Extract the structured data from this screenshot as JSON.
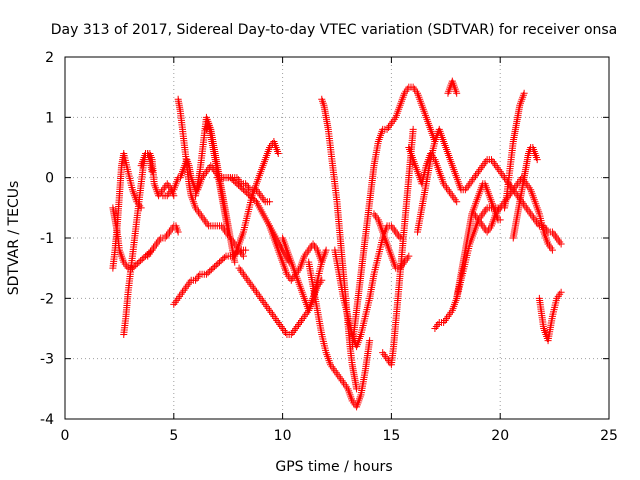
{
  "chart_data": {
    "type": "scatter",
    "title": "Day 313 of 2017, Sidereal Day-to-day VTEC variation (SDTVAR) for receiver onsa",
    "xlabel": "GPS time / hours",
    "ylabel": "SDTVAR / TECUs",
    "xlim": [
      0,
      25
    ],
    "ylim": [
      -4,
      2
    ],
    "xticks": [
      "0",
      "5",
      "10",
      "15",
      "20",
      "25"
    ],
    "yticks": [
      "-4",
      "-3",
      "-2",
      "-1",
      "0",
      "1",
      "2"
    ],
    "grid": true,
    "marker": "+",
    "color": "#ff0000",
    "series": [
      {
        "x": [
          2.2,
          2.3,
          2.4,
          2.5,
          2.7,
          2.9,
          3.1,
          3.4,
          3.7,
          4.0
        ],
        "y": [
          -0.5,
          -0.7,
          -0.9,
          -1.2,
          -1.4,
          -1.5,
          -1.5,
          -1.4,
          -1.3,
          -1.2
        ]
      },
      {
        "x": [
          2.2,
          2.3,
          2.4,
          2.5,
          2.6,
          2.7,
          2.9,
          3.1,
          3.3,
          3.5
        ],
        "y": [
          -1.5,
          -1.2,
          -0.8,
          -0.3,
          0.2,
          0.4,
          0.1,
          -0.2,
          -0.4,
          -0.5
        ]
      },
      {
        "x": [
          2.7,
          2.8,
          2.9,
          3.0,
          3.1,
          3.2,
          3.3,
          3.4,
          3.5,
          3.6,
          3.7,
          3.8,
          3.9,
          4.0
        ],
        "y": [
          -2.6,
          -2.3,
          -1.9,
          -1.6,
          -1.3,
          -1.0,
          -0.7,
          -0.4,
          -0.1,
          0.2,
          0.4,
          0.4,
          0.3,
          0.1
        ]
      },
      {
        "x": [
          3.5,
          3.7,
          3.9,
          4.0,
          4.1,
          4.3,
          4.5,
          4.7,
          4.9,
          5.0
        ],
        "y": [
          0.2,
          0.4,
          0.4,
          0.3,
          -0.1,
          -0.3,
          -0.2,
          -0.1,
          -0.2,
          -0.3
        ]
      },
      {
        "x": [
          3.8,
          4.0,
          4.2,
          4.4,
          4.6,
          4.8,
          5.0,
          5.1,
          5.2
        ],
        "y": [
          -1.3,
          -1.2,
          -1.1,
          -1.0,
          -1.0,
          -0.9,
          -0.8,
          -0.8,
          -0.9
        ]
      },
      {
        "x": [
          4.5,
          4.7,
          4.9,
          5.0,
          5.1,
          5.2,
          5.3,
          5.4,
          5.5,
          5.6,
          5.7,
          5.8,
          5.9,
          6.0,
          6.1,
          6.2,
          6.3,
          6.5,
          6.7,
          6.9,
          7.1,
          7.3,
          7.5,
          7.7,
          7.9,
          8.1,
          8.3,
          8.5,
          8.8,
          9.0,
          9.2,
          9.4
        ],
        "y": [
          -0.3,
          -0.3,
          -0.2,
          -0.2,
          -0.1,
          0.0,
          0.0,
          0.1,
          0.2,
          0.3,
          0.2,
          0.0,
          -0.1,
          -0.2,
          -0.2,
          -0.1,
          0.0,
          0.1,
          0.2,
          0.1,
          0.0,
          0.0,
          0.0,
          0.0,
          0.0,
          -0.1,
          -0.1,
          -0.2,
          -0.2,
          -0.3,
          -0.4,
          -0.4
        ]
      },
      {
        "x": [
          5.0,
          5.2,
          5.4,
          5.6,
          5.8,
          6.0,
          6.2,
          6.5,
          6.8,
          7.1,
          7.4,
          7.7,
          8.0,
          8.3
        ],
        "y": [
          -2.1,
          -2.0,
          -1.9,
          -1.8,
          -1.7,
          -1.7,
          -1.6,
          -1.6,
          -1.5,
          -1.4,
          -1.3,
          -1.3,
          -1.2,
          -1.2
        ]
      },
      {
        "x": [
          5.2,
          5.3,
          5.4,
          5.5,
          5.6,
          5.7,
          5.8,
          5.9,
          6.0,
          6.2,
          6.4,
          6.6,
          6.8,
          7.0,
          7.2,
          7.4,
          7.6,
          7.8,
          8.0,
          8.2
        ],
        "y": [
          1.3,
          1.1,
          0.8,
          0.5,
          0.2,
          -0.1,
          -0.3,
          -0.4,
          -0.5,
          -0.6,
          -0.7,
          -0.8,
          -0.8,
          -0.8,
          -0.8,
          -0.9,
          -1.0,
          -1.1,
          -1.2,
          -1.3
        ]
      },
      {
        "x": [
          6.0,
          6.1,
          6.2,
          6.3,
          6.4,
          6.5,
          6.6,
          6.7,
          6.8,
          6.9,
          7.0,
          7.1,
          7.2,
          7.3,
          7.4,
          7.5
        ],
        "y": [
          -0.3,
          -0.1,
          0.1,
          0.4,
          0.7,
          1.0,
          0.9,
          0.7,
          0.5,
          0.3,
          0.1,
          -0.1,
          -0.3,
          -0.5,
          -0.7,
          -0.9
        ]
      },
      {
        "x": [
          6.5,
          6.6,
          6.7,
          6.8,
          6.9,
          7.0,
          7.1,
          7.2,
          7.3,
          7.4,
          7.5,
          7.6,
          7.7,
          7.8
        ],
        "y": [
          0.8,
          0.9,
          0.8,
          0.6,
          0.4,
          0.2,
          0.0,
          -0.2,
          -0.4,
          -0.6,
          -0.8,
          -1.0,
          -1.2,
          -1.4
        ]
      },
      {
        "x": [
          7.8,
          8.0,
          8.2,
          8.4,
          8.6,
          8.8,
          9.0,
          9.2,
          9.4,
          9.6,
          9.8
        ],
        "y": [
          -1.3,
          -1.1,
          -0.9,
          -0.6,
          -0.3,
          -0.1,
          0.1,
          0.3,
          0.5,
          0.6,
          0.4
        ]
      },
      {
        "x": [
          7.0,
          7.3,
          7.6,
          7.9,
          8.2,
          8.5,
          8.8,
          9.1,
          9.4,
          9.7,
          10.0,
          10.3
        ],
        "y": [
          0.0,
          0.0,
          0.0,
          -0.1,
          -0.2,
          -0.3,
          -0.4,
          -0.6,
          -0.8,
          -1.0,
          -1.2,
          -1.4
        ]
      },
      {
        "x": [
          8.0,
          8.2,
          8.4,
          8.6,
          8.8,
          9.0,
          9.2,
          9.4,
          9.6,
          9.8,
          10.0,
          10.2,
          10.4,
          10.6,
          10.8,
          11.0,
          11.2,
          11.4,
          11.6,
          11.8
        ],
        "y": [
          -1.5,
          -1.6,
          -1.7,
          -1.8,
          -1.9,
          -2.0,
          -2.1,
          -2.2,
          -2.3,
          -2.4,
          -2.5,
          -2.6,
          -2.6,
          -2.5,
          -2.4,
          -2.3,
          -2.2,
          -2.0,
          -1.8,
          -1.7
        ]
      },
      {
        "x": [
          9.4,
          9.6,
          9.8,
          10.0,
          10.2,
          10.4,
          10.6,
          10.8,
          11.0,
          11.2,
          11.4,
          11.6,
          11.8
        ],
        "y": [
          -0.8,
          -1.0,
          -1.2,
          -1.4,
          -1.6,
          -1.7,
          -1.6,
          -1.5,
          -1.3,
          -1.2,
          -1.1,
          -1.2,
          -1.4
        ]
      },
      {
        "x": [
          10.0,
          10.2,
          10.4,
          10.6,
          10.8,
          11.0,
          11.2,
          11.4,
          11.6,
          11.8,
          12.0
        ],
        "y": [
          -1.0,
          -1.2,
          -1.4,
          -1.6,
          -1.8,
          -2.0,
          -2.2,
          -2.0,
          -1.7,
          -1.4,
          -1.2
        ]
      },
      {
        "x": [
          11.2,
          11.4,
          11.6,
          11.8,
          12.0,
          12.2,
          12.4,
          12.6,
          12.8,
          13.0,
          13.2,
          13.4,
          13.6,
          13.8,
          14.0
        ],
        "y": [
          -1.4,
          -1.8,
          -2.2,
          -2.6,
          -2.9,
          -3.1,
          -3.2,
          -3.3,
          -3.4,
          -3.5,
          -3.7,
          -3.8,
          -3.6,
          -3.2,
          -2.7
        ]
      },
      {
        "x": [
          11.8,
          11.9,
          12.0,
          12.1,
          12.2,
          12.3,
          12.4,
          12.5,
          12.6,
          12.7,
          12.8,
          12.9,
          13.0,
          13.1,
          13.2,
          13.3,
          13.4
        ],
        "y": [
          1.3,
          1.2,
          1.0,
          0.8,
          0.5,
          0.2,
          -0.1,
          -0.4,
          -0.8,
          -1.2,
          -1.6,
          -2.0,
          -2.4,
          -2.8,
          -3.1,
          -3.3,
          -3.5
        ]
      },
      {
        "x": [
          12.4,
          12.6,
          12.8,
          13.0,
          13.2,
          13.4,
          13.6,
          13.8,
          14.0,
          14.2,
          14.4,
          14.6,
          14.8,
          15.0,
          15.2,
          15.4
        ],
        "y": [
          -1.2,
          -1.6,
          -2.0,
          -2.3,
          -2.6,
          -2.8,
          -2.6,
          -2.3,
          -2.0,
          -1.6,
          -1.3,
          -1.0,
          -0.8,
          -0.8,
          -0.9,
          -1.0
        ]
      },
      {
        "x": [
          13.2,
          13.4,
          13.6,
          13.8,
          14.0,
          14.2,
          14.4,
          14.6,
          14.8,
          15.0,
          15.2,
          15.4,
          15.6,
          15.8,
          16.0,
          16.2,
          16.4,
          16.6,
          16.8,
          17.0
        ],
        "y": [
          -2.8,
          -2.2,
          -1.6,
          -1.0,
          -0.4,
          0.2,
          0.6,
          0.8,
          0.8,
          0.9,
          1.0,
          1.2,
          1.4,
          1.5,
          1.5,
          1.4,
          1.2,
          1.0,
          0.8,
          0.6
        ]
      },
      {
        "x": [
          14.6,
          14.8,
          15.0,
          15.1,
          15.2,
          15.3,
          15.4,
          15.5,
          15.6,
          15.7,
          15.8,
          15.9,
          16.0
        ],
        "y": [
          -2.9,
          -3.0,
          -3.1,
          -2.8,
          -2.4,
          -2.0,
          -1.6,
          -1.2,
          -0.8,
          -0.4,
          0.0,
          0.4,
          0.8
        ]
      },
      {
        "x": [
          14.2,
          14.4,
          14.6,
          14.8,
          15.0,
          15.2,
          15.4,
          15.6,
          15.8
        ],
        "y": [
          -0.6,
          -0.7,
          -0.9,
          -1.1,
          -1.3,
          -1.5,
          -1.5,
          -1.4,
          -1.3
        ]
      },
      {
        "x": [
          15.8,
          16.0,
          16.2,
          16.4,
          16.6,
          16.8,
          17.0,
          17.2,
          17.4,
          17.6,
          17.8,
          18.0
        ],
        "y": [
          0.5,
          0.3,
          0.1,
          -0.1,
          0.2,
          0.4,
          0.3,
          0.1,
          -0.1,
          -0.2,
          -0.3,
          -0.4
        ]
      },
      {
        "x": [
          16.2,
          16.4,
          16.6,
          16.8,
          17.0,
          17.2,
          17.4,
          17.6,
          17.8,
          18.0,
          18.2,
          18.4,
          18.6,
          18.8,
          19.0,
          19.2,
          19.4,
          19.6,
          19.8,
          20.0,
          20.2,
          20.4,
          20.6,
          20.8,
          21.0,
          21.2,
          21.4,
          21.6,
          21.8,
          22.0,
          22.2,
          22.4,
          22.6,
          22.8
        ],
        "y": [
          -0.9,
          -0.5,
          -0.1,
          0.3,
          0.6,
          0.8,
          0.6,
          0.4,
          0.2,
          0.0,
          -0.2,
          -0.2,
          -0.1,
          0.0,
          0.1,
          0.2,
          0.3,
          0.3,
          0.2,
          0.1,
          0.0,
          -0.1,
          -0.2,
          -0.3,
          -0.4,
          -0.5,
          -0.6,
          -0.7,
          -0.8,
          -0.8,
          -0.9,
          -0.9,
          -1.0,
          -1.1
        ]
      },
      {
        "x": [
          17.0,
          17.2,
          17.4,
          17.6,
          17.8,
          18.0,
          18.2,
          18.4,
          18.6,
          18.8,
          19.0,
          19.2,
          19.4,
          19.6,
          19.8,
          20.0
        ],
        "y": [
          -2.5,
          -2.4,
          -2.4,
          -2.3,
          -2.2,
          -2.0,
          -1.7,
          -1.4,
          -1.1,
          -0.9,
          -0.7,
          -0.6,
          -0.5,
          -0.5,
          -0.5,
          -0.5
        ]
      },
      {
        "x": [
          18.0,
          18.1,
          18.2,
          18.3,
          18.4,
          18.5,
          18.6,
          18.7,
          18.8,
          18.9,
          19.0,
          19.1,
          19.2,
          19.3,
          19.4,
          19.5,
          19.6,
          19.7,
          19.8,
          19.9,
          20.0
        ],
        "y": [
          -2.0,
          -1.8,
          -1.6,
          -1.4,
          -1.2,
          -1.0,
          -0.8,
          -0.6,
          -0.5,
          -0.4,
          -0.3,
          -0.2,
          -0.1,
          -0.1,
          -0.2,
          -0.3,
          -0.4,
          -0.5,
          -0.6,
          -0.7,
          -0.7
        ]
      },
      {
        "x": [
          17.6,
          17.7,
          17.8,
          17.9,
          18.0
        ],
        "y": [
          1.4,
          1.5,
          1.6,
          1.5,
          1.4
        ]
      },
      {
        "x": [
          18.8,
          19.0,
          19.2,
          19.4,
          19.6,
          19.8,
          20.0,
          20.2,
          20.4,
          20.6,
          20.8,
          21.0
        ],
        "y": [
          -0.6,
          -0.7,
          -0.8,
          -0.9,
          -0.8,
          -0.6,
          -0.5,
          -0.4,
          -0.3,
          -0.2,
          -0.1,
          0.0
        ]
      },
      {
        "x": [
          20.2,
          20.3,
          20.4,
          20.5,
          20.6,
          20.7,
          20.8,
          20.9,
          21.0,
          21.1
        ],
        "y": [
          -0.5,
          -0.3,
          0.0,
          0.3,
          0.6,
          0.8,
          1.0,
          1.2,
          1.3,
          1.4
        ]
      },
      {
        "x": [
          20.6,
          20.7,
          20.8,
          20.9,
          21.0,
          21.1,
          21.2,
          21.3,
          21.4,
          21.5,
          21.6,
          21.7
        ],
        "y": [
          -1.0,
          -0.8,
          -0.6,
          -0.4,
          -0.2,
          0.0,
          0.2,
          0.4,
          0.5,
          0.5,
          0.4,
          0.3
        ]
      },
      {
        "x": [
          21.8,
          22.0,
          22.2,
          22.4,
          22.6,
          22.8
        ],
        "y": [
          -2.0,
          -2.5,
          -2.7,
          -2.3,
          -2.0,
          -1.9
        ]
      },
      {
        "x": [
          21.0,
          21.2,
          21.4,
          21.6,
          21.8,
          22.0,
          22.2,
          22.4
        ],
        "y": [
          0.0,
          -0.1,
          -0.2,
          -0.4,
          -0.6,
          -0.9,
          -1.1,
          -1.2
        ]
      }
    ]
  }
}
